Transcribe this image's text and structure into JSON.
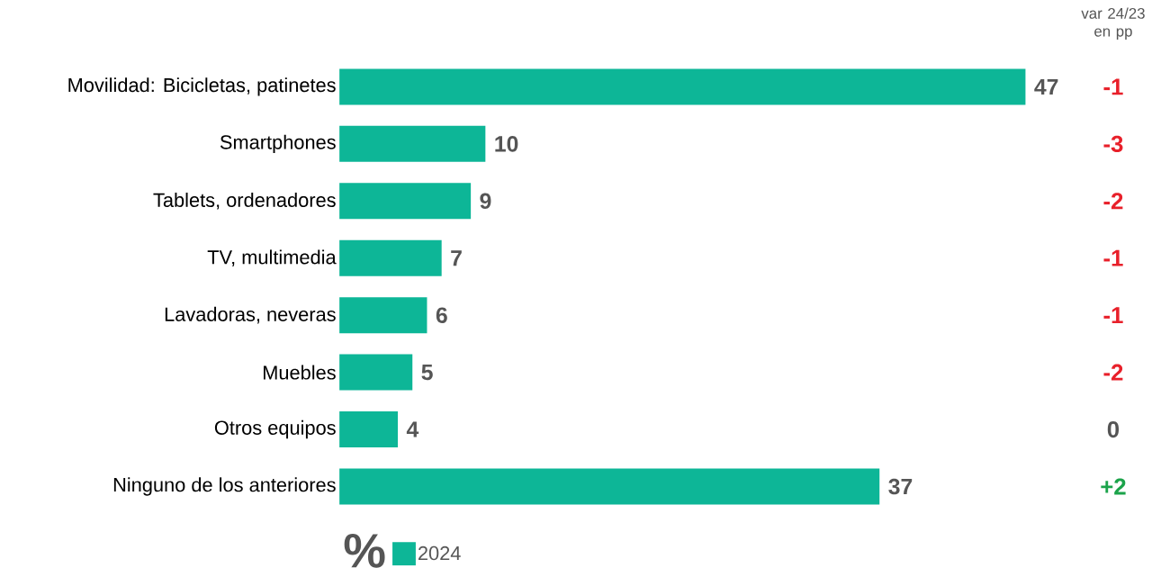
{
  "chart_data": {
    "type": "bar",
    "orientation": "horizontal",
    "xlabel": "%",
    "categories": [
      "Movilidad: Bicicletas, patinetes",
      "Smartphones",
      "Tablets, ordenadores",
      "TV, multimedia",
      "Lavadoras, neveras",
      "Muebles",
      "Otros equipos",
      "Ninguno de los anteriores"
    ],
    "series": [
      {
        "name": "2024",
        "color": "#0db697",
        "values": [
          47,
          10,
          9,
          7,
          6,
          5,
          4,
          37
        ]
      }
    ],
    "data_labels": true,
    "legend": "bottom",
    "annotations": [
      "var 24/23 en pp",
      "-1",
      "-3",
      "-2",
      "-1",
      "-1",
      "-2",
      "0",
      "+2"
    ]
  }
}
